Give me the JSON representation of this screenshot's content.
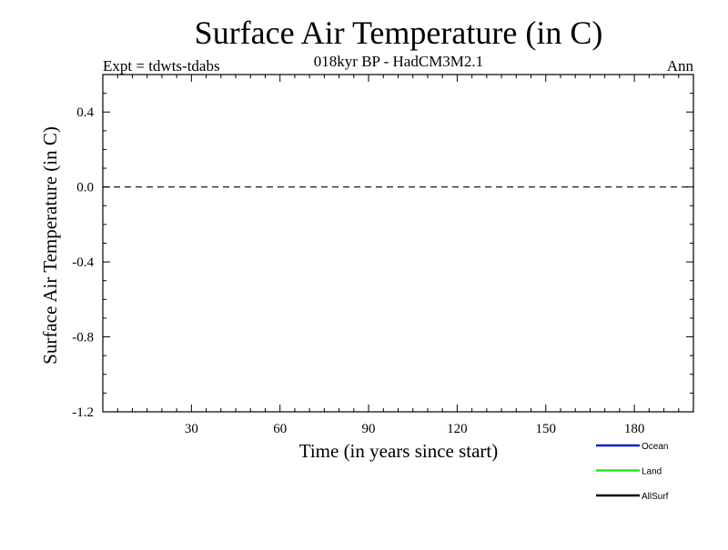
{
  "chart_data": {
    "type": "line",
    "title": "Surface Air Temperature (in C)",
    "subtitle": "018kyr BP - HadCM3M2.1",
    "left_label": "Expt = tdwts-tdabs",
    "right_label": "Ann",
    "xlabel": "Time (in years since start)",
    "ylabel": "Surface Air Temperature (in C)",
    "xlim": [
      0,
      200
    ],
    "ylim": [
      -1.2,
      0.6
    ],
    "x_ticks": [
      30,
      60,
      90,
      120,
      150,
      180
    ],
    "x_tick_labels": [
      "30",
      "60",
      "90",
      "120",
      "150",
      "180"
    ],
    "y_ticks": [
      -1.2,
      -0.8,
      -0.4,
      0.0,
      0.4
    ],
    "y_tick_labels": [
      "-1.2",
      "-0.8",
      "-0.4",
      "0.0",
      "0.4"
    ],
    "zero_line": "dashed",
    "legend_position": "bottom-right",
    "series": [
      {
        "name": "Ocean",
        "color": "#0a1fd0"
      },
      {
        "name": "Land",
        "color": "#22e822"
      },
      {
        "name": "AllSurf",
        "color": "#000000"
      }
    ]
  }
}
